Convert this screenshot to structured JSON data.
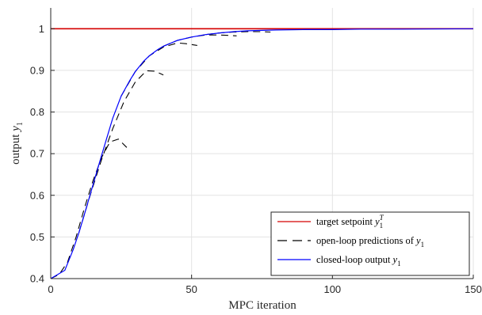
{
  "chart_data": {
    "type": "line",
    "xlabel": "MPC iteration",
    "ylabel_text": "output ",
    "ylabel_var": "y",
    "ylabel_sub": "1",
    "xlim": [
      0,
      150
    ],
    "ylim": [
      0.4,
      1.05
    ],
    "x_ticks": [
      0,
      50,
      100,
      150
    ],
    "y_ticks": [
      0.4,
      0.5,
      0.6,
      0.7,
      0.8,
      0.9,
      1
    ],
    "grid": true,
    "legend_position": "bottom-right",
    "colors": {
      "target": "#d40000",
      "predictions": "#000000",
      "closed_loop": "#0000ff"
    },
    "legend": [
      {
        "text": "target setpoint ",
        "var": "y",
        "sub": "1",
        "sup": "T",
        "style": "solid",
        "color": "#d40000"
      },
      {
        "text": "open-loop predictions of ",
        "var": "y",
        "sub": "1",
        "style": "dashed",
        "color": "#000000"
      },
      {
        "text": "closed-loop output ",
        "var": "y",
        "sub": "1",
        "style": "solid",
        "color": "#0000ff"
      }
    ],
    "series": [
      {
        "name": "target setpoint",
        "role": "target",
        "x": [
          0,
          150
        ],
        "y": [
          1,
          1
        ]
      },
      {
        "name": "closed-loop output",
        "role": "closed_loop",
        "x": [
          0,
          5,
          8,
          10,
          12,
          15,
          18,
          20,
          22,
          25,
          28,
          30,
          33,
          35,
          38,
          40,
          45,
          50,
          55,
          60,
          65,
          70,
          80,
          90,
          100,
          110,
          125,
          150
        ],
        "y": [
          0.4,
          0.42,
          0.47,
          0.51,
          0.555,
          0.625,
          0.695,
          0.74,
          0.785,
          0.838,
          0.875,
          0.897,
          0.922,
          0.935,
          0.95,
          0.958,
          0.972,
          0.98,
          0.986,
          0.99,
          0.993,
          0.995,
          0.997,
          0.998,
          0.998,
          0.999,
          0.999,
          1.0
        ]
      }
    ],
    "predictions": [
      {
        "x": [
          0,
          3,
          6,
          9,
          12,
          15,
          18,
          21,
          24,
          27
        ],
        "y": [
          0.4,
          0.41,
          0.44,
          0.5,
          0.57,
          0.635,
          0.69,
          0.728,
          0.735,
          0.715
        ]
      },
      {
        "x": [
          10,
          14,
          18,
          22,
          26,
          30,
          34,
          37,
          40
        ],
        "y": [
          0.51,
          0.6,
          0.685,
          0.76,
          0.825,
          0.872,
          0.899,
          0.898,
          0.889
        ]
      },
      {
        "x": [
          25,
          30,
          35,
          40,
          45,
          48,
          52
        ],
        "y": [
          0.838,
          0.897,
          0.935,
          0.956,
          0.966,
          0.964,
          0.96
        ]
      },
      {
        "x": [
          40,
          45,
          50,
          55,
          60,
          63,
          66
        ],
        "y": [
          0.958,
          0.972,
          0.98,
          0.985,
          0.985,
          0.984,
          0.983
        ]
      },
      {
        "x": [
          55,
          60,
          65,
          70,
          75,
          78
        ],
        "y": [
          0.986,
          0.99,
          0.992,
          0.993,
          0.993,
          0.992
        ]
      }
    ]
  }
}
